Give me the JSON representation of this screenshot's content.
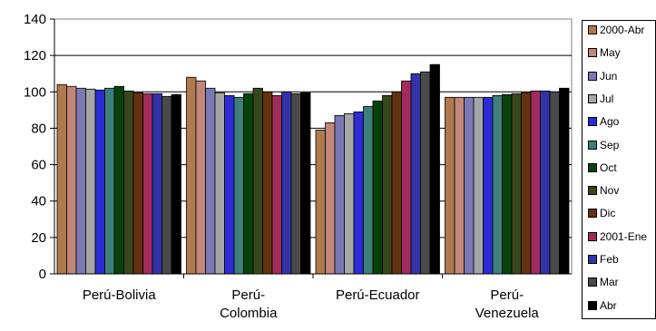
{
  "chart_data": {
    "type": "bar",
    "categories": [
      "Perú-Bolivia",
      "Perú-Colombia",
      "Perú-Ecuador",
      "Perú-Venezuela"
    ],
    "category_labels": [
      [
        "Perú-Bolivia"
      ],
      [
        "Perú-",
        "Colombia"
      ],
      [
        "Perú-Ecuador"
      ],
      [
        "Perú-",
        "Venezuela"
      ]
    ],
    "ylim": [
      0,
      140
    ],
    "yticks": [
      0,
      20,
      40,
      60,
      80,
      100,
      120,
      140
    ],
    "grid": true,
    "legend_position": "right",
    "series": [
      {
        "name": "2000-Abr",
        "color": "#b07a4f",
        "values": [
          104,
          108,
          79,
          97
        ]
      },
      {
        "name": "May",
        "color": "#c0877a",
        "values": [
          103,
          106,
          83,
          97
        ]
      },
      {
        "name": "Jun",
        "color": "#7b79b5",
        "values": [
          102,
          102,
          87,
          97
        ]
      },
      {
        "name": "Jul",
        "color": "#a6a6a6",
        "values": [
          101.5,
          99.5,
          88,
          97
        ]
      },
      {
        "name": "Ago",
        "color": "#2c2cd4",
        "values": [
          101,
          98,
          89,
          97
        ]
      },
      {
        "name": "Sep",
        "color": "#3d7f7b",
        "values": [
          102,
          97,
          92,
          98
        ]
      },
      {
        "name": "Oct",
        "color": "#07420b",
        "values": [
          103,
          99,
          95,
          98.5
        ]
      },
      {
        "name": "Nov",
        "color": "#38471b",
        "values": [
          100.5,
          102,
          98,
          99
        ]
      },
      {
        "name": "Dic",
        "color": "#633211",
        "values": [
          99.5,
          100,
          100,
          99.5
        ]
      },
      {
        "name": "2001-Ene",
        "color": "#a02b5c",
        "values": [
          99,
          98,
          106,
          100.5
        ]
      },
      {
        "name": "Feb",
        "color": "#3333a8",
        "values": [
          99,
          100,
          110,
          100.5
        ]
      },
      {
        "name": "Mar",
        "color": "#4a4a4a",
        "values": [
          97.5,
          99,
          111,
          100
        ]
      },
      {
        "name": "Abr",
        "color": "#000000",
        "values": [
          98.5,
          99.5,
          115,
          102
        ]
      }
    ]
  }
}
